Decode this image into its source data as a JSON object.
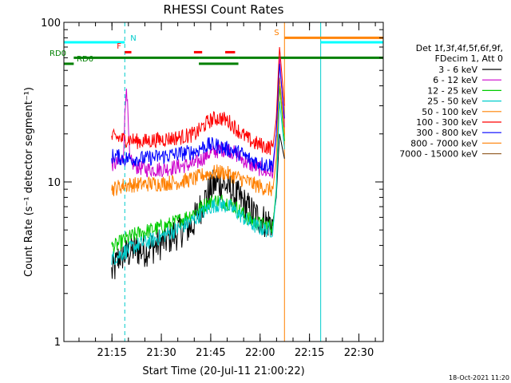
{
  "chart_data": {
    "type": "line",
    "title": "RHESSI Count Rates",
    "xlabel": "Start Time (20-Jul-11 21:00:22)",
    "ylabel": "Count Rate (s⁻¹ detector segment⁻¹)",
    "xlim_minutes": [
      0,
      97
    ],
    "ylim": [
      1,
      100
    ],
    "yscale": "log",
    "x_ticks": [
      {
        "label": "21:15",
        "minutes": 14.6
      },
      {
        "label": "21:30",
        "minutes": 29.6
      },
      {
        "label": "21:45",
        "minutes": 44.6
      },
      {
        "label": "22:00",
        "minutes": 59.6
      },
      {
        "label": "22:15",
        "minutes": 74.6
      },
      {
        "label": "22:30",
        "minutes": 89.6
      }
    ],
    "y_ticks": [
      {
        "label": "1",
        "value": 1
      },
      {
        "label": "10",
        "value": 10
      },
      {
        "label": "100",
        "value": 100
      }
    ],
    "legend_header": [
      "Det 1f,3f,4f,5f,6f,9f,",
      "FDecim 1, Att 0"
    ],
    "legend_position": "right",
    "series": [
      {
        "name": "3 - 6 keV",
        "color": "#000000",
        "x": [
          14.5,
          15.5,
          17,
          19,
          21,
          24,
          27,
          30,
          33,
          36,
          39,
          40,
          42,
          44,
          46,
          48,
          50,
          52,
          54,
          56,
          58,
          60,
          62,
          63.5,
          64.5,
          65.5,
          67
        ],
        "y": [
          2.7,
          2.9,
          3.5,
          3.5,
          3.8,
          3.7,
          3.9,
          4.2,
          4.6,
          5.0,
          5.3,
          6.0,
          7.2,
          8.6,
          9.8,
          9.8,
          9.2,
          8.3,
          7.6,
          6.8,
          6.2,
          5.8,
          5.6,
          5.6,
          8.0,
          20.0,
          14.0
        ]
      },
      {
        "name": "6 - 12 keV",
        "color": "#cc00cc",
        "x": [
          14.5,
          16,
          18,
          19,
          20,
          22,
          25,
          30,
          35,
          40,
          42,
          44,
          46,
          48,
          50,
          52,
          54,
          56,
          58,
          60,
          62,
          63.5,
          64.5,
          65.5,
          67
        ],
        "y": [
          13.0,
          13.0,
          14.0,
          43.0,
          13.5,
          12.5,
          12.0,
          12.0,
          12.5,
          13.0,
          14.0,
          15.0,
          15.5,
          16.0,
          16.0,
          15.0,
          14.0,
          13.0,
          12.5,
          12.0,
          11.5,
          11.5,
          20.0,
          60.0,
          22.0
        ]
      },
      {
        "name": "12 - 25 keV",
        "color": "#00cc00",
        "x": [
          14.5,
          16,
          18,
          20,
          22,
          25,
          28,
          31,
          34,
          37,
          40,
          42,
          44,
          46,
          48,
          50,
          52,
          54,
          56,
          58,
          60,
          62,
          63.5,
          64.5,
          65.5,
          67
        ],
        "y": [
          3.9,
          4.0,
          4.3,
          4.5,
          4.7,
          4.9,
          5.1,
          5.3,
          5.6,
          6.0,
          6.5,
          7.0,
          7.4,
          7.6,
          7.6,
          7.4,
          7.0,
          6.4,
          5.9,
          5.6,
          5.4,
          5.3,
          5.3,
          9.0,
          40.0,
          18.0
        ]
      },
      {
        "name": "25 - 50 keV",
        "color": "#00cccc",
        "x": [
          14.5,
          16,
          18,
          20,
          22,
          25,
          28,
          31,
          34,
          37,
          40,
          42,
          44,
          46,
          48,
          50,
          52,
          54,
          56,
          58,
          60,
          62,
          63.5,
          64.5,
          65.5,
          67
        ],
        "y": [
          3.3,
          3.4,
          3.6,
          3.8,
          4.0,
          4.2,
          4.4,
          4.7,
          5.0,
          5.4,
          5.9,
          6.4,
          6.9,
          7.2,
          7.2,
          7.0,
          6.6,
          6.1,
          5.6,
          5.3,
          5.1,
          5.0,
          5.0,
          8.5,
          32.0,
          16.0
        ]
      },
      {
        "name": "50 - 100 keV",
        "color": "#ff8000",
        "x": [
          14.5,
          16,
          18,
          20,
          22,
          25,
          30,
          35,
          40,
          42,
          44,
          46,
          48,
          50,
          52,
          54,
          56,
          58,
          60,
          62,
          63.5,
          64.5,
          65.5,
          67
        ],
        "y": [
          9.0,
          9.2,
          9.5,
          9.6,
          9.6,
          9.7,
          9.8,
          10.0,
          10.5,
          11.0,
          11.3,
          11.5,
          11.5,
          11.2,
          10.8,
          10.4,
          10.0,
          9.6,
          9.3,
          9.0,
          9.0,
          14.0,
          45.0,
          20.0
        ]
      },
      {
        "name": "100 - 300 keV",
        "color": "#ff0000",
        "x": [
          14.5,
          16,
          18,
          20,
          22,
          25,
          30,
          35,
          40,
          42,
          44,
          46,
          48,
          50,
          52,
          54,
          56,
          58,
          60,
          62,
          63.5,
          64.5,
          65.5,
          67
        ],
        "y": [
          19.0,
          19.0,
          18.5,
          18.5,
          18.0,
          18.0,
          18.5,
          19.0,
          20.0,
          22.0,
          24.0,
          25.0,
          25.0,
          24.0,
          22.0,
          20.0,
          18.5,
          17.5,
          17.0,
          16.5,
          16.5,
          25.0,
          70.0,
          30.0
        ]
      },
      {
        "name": "300 - 800 keV",
        "color": "#0000ff",
        "x": [
          14.5,
          16,
          18,
          20,
          22,
          25,
          30,
          35,
          40,
          42,
          44,
          46,
          48,
          50,
          52,
          54,
          56,
          58,
          60,
          62,
          63.5,
          64.5,
          65.5,
          67
        ],
        "y": [
          14.5,
          14.5,
          14.0,
          14.0,
          14.0,
          14.0,
          14.5,
          15.0,
          15.5,
          16.5,
          17.0,
          17.0,
          16.5,
          16.0,
          15.5,
          15.0,
          14.0,
          13.5,
          13.0,
          12.8,
          12.8,
          20.0,
          55.0,
          25.0
        ]
      },
      {
        "name": "800 - 7000 keV",
        "color": "#ff8c1a",
        "x": [
          67,
          97
        ],
        "y": [
          80,
          80
        ]
      },
      {
        "name": "7000 - 15000 keV",
        "color": "#996633",
        "x": [],
        "y": []
      }
    ],
    "annotations": [
      {
        "label": "RD0",
        "color": "#008000",
        "minutes": 0
      },
      {
        "label": "RD6",
        "color": "#008000",
        "minutes": 0
      },
      {
        "label": "N",
        "color": "#00cccc",
        "minutes": 18.5
      },
      {
        "label": "F",
        "color": "#ff0000",
        "minutes": 18.5
      },
      {
        "label": "S",
        "color": "#ff8000",
        "minutes": 67
      }
    ],
    "flag_bars": {
      "rd0": {
        "color": "#008000",
        "spans": [
          [
            3,
            41
          ],
          [
            41,
            53
          ],
          [
            53,
            97
          ]
        ],
        "level": 60
      },
      "rd6": {
        "color": "#008000",
        "spans": [
          [
            0,
            3
          ],
          [
            41,
            53
          ]
        ],
        "level": 55
      },
      "n": {
        "color": "#00ffff",
        "spans": [
          [
            0,
            18.5
          ],
          [
            78,
            97
          ]
        ],
        "level": 75
      },
      "f": {
        "color": "#ff0000",
        "spans": [
          [
            18.5,
            20.5
          ],
          [
            39.5,
            42
          ],
          [
            49,
            52
          ]
        ],
        "level": 65
      },
      "s": {
        "color": "#ff8000",
        "spans": [
          [
            67,
            97
          ]
        ],
        "level": 80
      }
    },
    "vlines": [
      {
        "minutes": 0,
        "color": "#00cccc",
        "dash": false
      },
      {
        "minutes": 18.5,
        "color": "#00cccc",
        "dash": true
      },
      {
        "minutes": 67,
        "color": "#ff8000",
        "dash": false
      },
      {
        "minutes": 78,
        "color": "#00cccc",
        "dash": false
      },
      {
        "minutes": 97,
        "color": "#00cccc",
        "dash": true
      }
    ]
  },
  "timestamp": "18-Oct-2021 11:20"
}
